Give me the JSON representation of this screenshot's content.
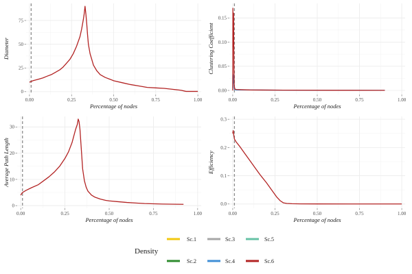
{
  "colors": {
    "Sc.1": "#f2c80f",
    "Sc.2": "#2e8b2e",
    "Sc.3": "#a6a6a6",
    "Sc.4": "#3f8fd6",
    "Sc.5": "#66c2a5",
    "Sc.6": "#b22222",
    "grid": "#ebebeb",
    "vline": "#8c8c8c"
  },
  "legend": {
    "title": "Density",
    "items": [
      "Sc.1",
      "Sc.3",
      "Sc.5",
      "Sc.2",
      "Sc.4",
      "Sc.6"
    ]
  },
  "chart_data": [
    {
      "type": "line",
      "title": "",
      "xlabel": "Percentage of nodes",
      "ylabel": "Diameter",
      "xlim": [
        -0.02,
        1.02
      ],
      "ylim": [
        -3,
        93
      ],
      "xticks": [
        0,
        0.25,
        0.5,
        0.75,
        1
      ],
      "xtick_labels": [
        "0.00",
        "0.25",
        "0.50",
        "0.75",
        "1.00"
      ],
      "yticks": [
        0,
        25,
        50,
        75
      ],
      "ytick_labels": [
        "0",
        "25",
        "50",
        "75"
      ],
      "vline": 0.01,
      "series": [
        {
          "name": "Sc.6",
          "x": [
            0,
            0.02,
            0.05,
            0.08,
            0.1,
            0.13,
            0.15,
            0.18,
            0.2,
            0.22,
            0.24,
            0.26,
            0.28,
            0.3,
            0.31,
            0.32,
            0.325,
            0.33,
            0.335,
            0.34,
            0.345,
            0.35,
            0.36,
            0.37,
            0.38,
            0.4,
            0.42,
            0.45,
            0.48,
            0.5,
            0.55,
            0.6,
            0.65,
            0.7,
            0.75,
            0.8,
            0.85,
            0.9,
            0.93,
            1.0
          ],
          "y": [
            10,
            11.5,
            13,
            14.5,
            16,
            18,
            20,
            23,
            26,
            30,
            34,
            40,
            48,
            58,
            66,
            76,
            82,
            90,
            82,
            72,
            60,
            50,
            40,
            34,
            28,
            22,
            18,
            15,
            13,
            11.5,
            9.5,
            7.5,
            6,
            4.5,
            4,
            3.5,
            2.5,
            1.5,
            0.3,
            0.3
          ]
        }
      ]
    },
    {
      "type": "line",
      "title": "",
      "xlabel": "Percentage of nodes",
      "ylabel": "Clustering Coefficient",
      "xlim": [
        -0.02,
        1.02
      ],
      "ylim": [
        -0.0085,
        0.18
      ],
      "xticks": [
        0,
        0.25,
        0.5,
        0.75,
        1
      ],
      "xtick_labels": [
        "0.00",
        "0.25",
        "0.50",
        "0.75",
        "1.00"
      ],
      "yticks": [
        0,
        0.05,
        0.1,
        0.15
      ],
      "ytick_labels": [
        "0.00",
        "0.05",
        "0.10",
        "0.15"
      ],
      "vline": 0.01,
      "series": [
        {
          "name": "Sc.4",
          "x": [
            0,
            0.002,
            0.004,
            0.006,
            0.008,
            0.01,
            0.02,
            0.05,
            0.1,
            0.3,
            0.6,
            0.9
          ],
          "y": [
            0.005,
            0.03,
            0.015,
            0.033,
            0.005,
            0.002,
            0.001,
            0.001,
            0.001,
            0.0005,
            0.0003,
            0.0002
          ]
        },
        {
          "name": "Sc.6",
          "x": [
            0,
            0.001,
            0.003,
            0.005,
            0.007,
            0.009,
            0.012,
            0.02,
            0.05,
            0.1,
            0.3,
            0.6,
            0.9
          ],
          "y": [
            0.0,
            0.17,
            0.09,
            0.16,
            0.05,
            0.01,
            0.003,
            0.002,
            0.0015,
            0.001,
            0.0005,
            0.0003,
            0.0002
          ]
        }
      ]
    },
    {
      "type": "line",
      "title": "",
      "xlabel": "Percentage of nodes",
      "ylabel": "Average Path Length",
      "xlim": [
        -0.02,
        1.02
      ],
      "ylim": [
        -1,
        34
      ],
      "xticks": [
        0,
        0.25,
        0.5,
        0.75,
        1
      ],
      "xtick_labels": [
        "0.00",
        "0.25",
        "0.50",
        "0.75",
        "1.00"
      ],
      "yticks": [
        0,
        10,
        20,
        30
      ],
      "ytick_labels": [
        "0",
        "10",
        "20",
        "30"
      ],
      "vline": 0.01,
      "series": [
        {
          "name": "Sc.6",
          "x": [
            0,
            0.01,
            0.03,
            0.06,
            0.1,
            0.13,
            0.16,
            0.19,
            0.22,
            0.25,
            0.27,
            0.29,
            0.3,
            0.31,
            0.32,
            0.325,
            0.33,
            0.335,
            0.34,
            0.345,
            0.35,
            0.36,
            0.37,
            0.38,
            0.4,
            0.42,
            0.45,
            0.48,
            0.5,
            0.55,
            0.6,
            0.65,
            0.7,
            0.8,
            0.92
          ],
          "y": [
            4,
            5,
            5.8,
            6.8,
            8,
            9.5,
            11,
            12.8,
            15,
            18,
            20.5,
            24,
            26.5,
            29,
            31,
            33,
            32,
            29,
            24,
            19,
            14,
            9.5,
            7,
            5.5,
            4,
            3.2,
            2.5,
            2,
            1.8,
            1.5,
            1.2,
            1.0,
            0.8,
            0.6,
            0.5
          ]
        }
      ]
    },
    {
      "type": "line",
      "title": "",
      "xlabel": "Percentage of nodes",
      "ylabel": "Efficiency",
      "xlim": [
        -0.02,
        1.02
      ],
      "ylim": [
        -0.015,
        0.31
      ],
      "xticks": [
        0,
        0.25,
        0.5,
        0.75,
        1
      ],
      "xtick_labels": [
        "0.00",
        "0.25",
        "0.50",
        "0.75",
        "1.00"
      ],
      "yticks": [
        0,
        0.1,
        0.2,
        0.3
      ],
      "ytick_labels": [
        "0.0",
        "0.1",
        "0.2",
        "0.3"
      ],
      "vline": 0.01,
      "series": [
        {
          "name": "Sc.6",
          "x": [
            0,
            0.003,
            0.007,
            0.01,
            0.02,
            0.04,
            0.07,
            0.1,
            0.13,
            0.16,
            0.2,
            0.23,
            0.26,
            0.28,
            0.3,
            0.32,
            0.35,
            0.4,
            0.5,
            0.7,
            1.0
          ],
          "y": [
            0.25,
            0.26,
            0.24,
            0.23,
            0.22,
            0.205,
            0.18,
            0.155,
            0.13,
            0.105,
            0.075,
            0.05,
            0.025,
            0.012,
            0.004,
            0.002,
            0.001,
            0.0005,
            0.0003,
            0.0002,
            0.0002
          ]
        }
      ]
    }
  ]
}
